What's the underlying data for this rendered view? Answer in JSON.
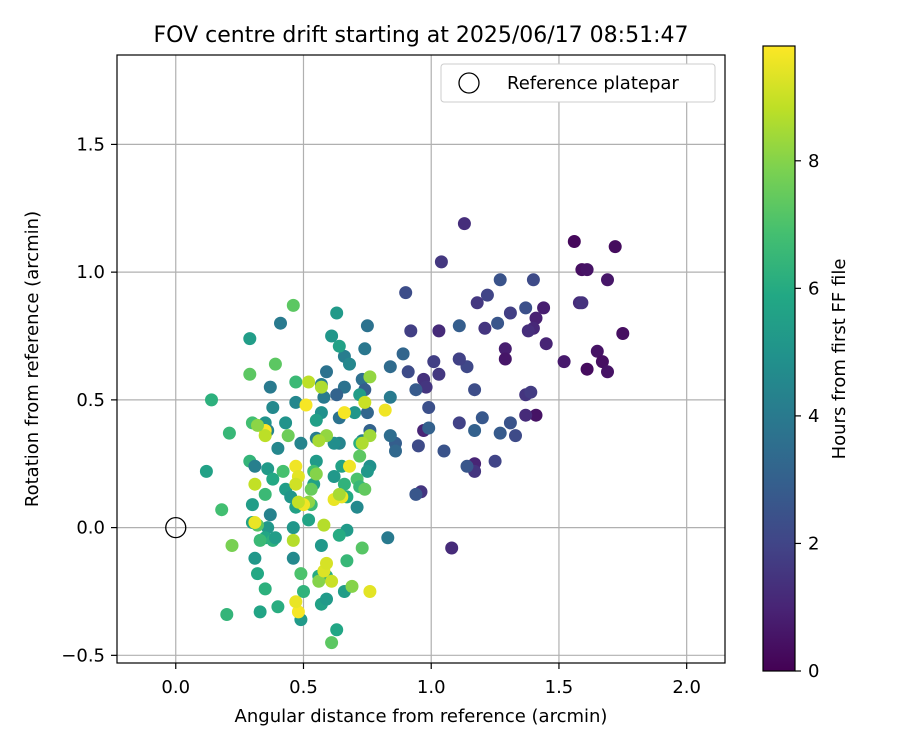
{
  "chart_data": {
    "type": "scatter",
    "title": "FOV centre drift starting at 2025/06/17 08:51:47",
    "xlabel": "Angular distance from reference (arcmin)",
    "ylabel": "Rotation from reference (arcmin)",
    "xlim": [
      -0.23,
      2.15
    ],
    "ylim": [
      -0.53,
      1.85
    ],
    "x_ticks": [
      "0.0",
      "0.5",
      "1.0",
      "1.5",
      "2.0"
    ],
    "x_tick_values": [
      0.0,
      0.5,
      1.0,
      1.5,
      2.0
    ],
    "y_ticks": [
      "−0.5",
      "0.0",
      "0.5",
      "1.0",
      "1.5"
    ],
    "y_tick_values": [
      -0.5,
      0.0,
      0.5,
      1.0,
      1.5
    ],
    "grid": true,
    "legend": {
      "label": "Reference platepar",
      "placement": "top-right"
    },
    "reference_point": {
      "x": 0.0,
      "y": 0.0
    },
    "colorbar": {
      "label": "Hours from first FF file",
      "colormap": "viridis",
      "range": [
        0,
        9.8
      ],
      "ticks": [
        "0",
        "2",
        "4",
        "6",
        "8"
      ],
      "tick_values": [
        0,
        2,
        4,
        6,
        8
      ]
    },
    "series": [
      {
        "points": [
          [
            1.56,
            1.12,
            0.2
          ],
          [
            1.59,
            1.01,
            0.4
          ],
          [
            1.61,
            1.01,
            0.5
          ],
          [
            1.72,
            1.1,
            0.3
          ],
          [
            1.69,
            0.97,
            0.6
          ],
          [
            1.75,
            0.76,
            0.4
          ],
          [
            1.65,
            0.69,
            0.5
          ],
          [
            1.67,
            0.65,
            0.4
          ],
          [
            1.69,
            0.61,
            0.5
          ],
          [
            1.61,
            0.62,
            0.3
          ],
          [
            1.52,
            0.65,
            0.7
          ],
          [
            1.58,
            0.88,
            1.2
          ],
          [
            1.59,
            0.88,
            1.4
          ],
          [
            1.44,
            0.86,
            0.8
          ],
          [
            1.41,
            0.82,
            0.9
          ],
          [
            1.4,
            0.78,
            1.1
          ],
          [
            1.38,
            0.77,
            1.3
          ],
          [
            1.45,
            0.72,
            1.0
          ],
          [
            1.41,
            0.44,
            0.5
          ],
          [
            1.37,
            0.44,
            1.2
          ],
          [
            1.37,
            0.52,
            1.5
          ],
          [
            1.39,
            0.53,
            1.7
          ],
          [
            1.29,
            0.7,
            0.8
          ],
          [
            1.29,
            0.66,
            0.6
          ],
          [
            1.31,
            0.84,
            1.8
          ],
          [
            1.37,
            0.86,
            2.4
          ],
          [
            1.4,
            0.97,
            2.2
          ],
          [
            1.21,
            0.78,
            1.5
          ],
          [
            1.18,
            0.88,
            1.6
          ],
          [
            1.22,
            0.91,
            2.0
          ],
          [
            1.27,
            0.97,
            2.5
          ],
          [
            1.13,
            1.19,
            1.3
          ],
          [
            1.04,
            1.04,
            1.6
          ],
          [
            1.26,
            0.8,
            2.6
          ],
          [
            1.31,
            0.41,
            2.5
          ],
          [
            1.33,
            0.36,
            2.2
          ],
          [
            1.27,
            0.37,
            2.8
          ],
          [
            1.25,
            0.26,
            2.0
          ],
          [
            1.2,
            0.43,
            2.7
          ],
          [
            1.17,
            0.38,
            3.0
          ],
          [
            1.17,
            0.54,
            2.3
          ],
          [
            1.14,
            0.63,
            2.1
          ],
          [
            1.11,
            0.66,
            1.4
          ],
          [
            1.11,
            0.66,
            1.9
          ],
          [
            1.11,
            0.79,
            2.9
          ],
          [
            1.11,
            0.41,
            1.9
          ],
          [
            1.17,
            0.25,
            1.0
          ],
          [
            1.17,
            0.22,
            1.5
          ],
          [
            1.14,
            0.24,
            2.6
          ],
          [
            1.08,
            -0.08,
            1.2
          ],
          [
            1.03,
            0.77,
            1.2
          ],
          [
            1.03,
            0.6,
            1.6
          ],
          [
            1.01,
            0.65,
            1.8
          ],
          [
            0.97,
            0.58,
            1.4
          ],
          [
            0.98,
            0.55,
            1.5
          ],
          [
            0.97,
            0.38,
            1.0
          ],
          [
            0.99,
            0.47,
            2.4
          ],
          [
            0.99,
            0.39,
            3.0
          ],
          [
            1.05,
            0.3,
            2.5
          ],
          [
            0.95,
            0.32,
            2.2
          ],
          [
            0.96,
            0.14,
            1.5
          ],
          [
            0.94,
            0.13,
            2.6
          ],
          [
            0.94,
            0.54,
            2.8
          ],
          [
            0.92,
            0.77,
            1.8
          ],
          [
            0.91,
            0.61,
            2.2
          ],
          [
            0.9,
            0.92,
            2.3
          ],
          [
            0.89,
            0.68,
            3.2
          ],
          [
            0.86,
            0.33,
            2.9
          ],
          [
            0.86,
            0.3,
            3.3
          ],
          [
            0.84,
            0.36,
            3.5
          ],
          [
            0.84,
            0.51,
            4.0
          ],
          [
            0.84,
            0.63,
            3.4
          ],
          [
            0.83,
            -0.04,
            4.0
          ],
          [
            0.75,
            0.79,
            3.7
          ],
          [
            0.74,
            0.7,
            3.9
          ],
          [
            0.73,
            0.58,
            3.6
          ],
          [
            0.74,
            0.54,
            2.9
          ],
          [
            0.75,
            0.45,
            3.2
          ],
          [
            0.76,
            0.38,
            3.1
          ],
          [
            0.73,
            0.34,
            4.2
          ],
          [
            0.76,
            0.24,
            4.9
          ],
          [
            0.75,
            0.22,
            5.2
          ],
          [
            0.71,
            0.08,
            4.6
          ],
          [
            0.66,
            0.67,
            4.1
          ],
          [
            0.68,
            0.64,
            4.5
          ],
          [
            0.66,
            0.55,
            3.7
          ],
          [
            0.63,
            0.52,
            3.1
          ],
          [
            0.64,
            0.43,
            3.7
          ],
          [
            0.64,
            0.33,
            4.4
          ],
          [
            0.62,
            0.33,
            4.8
          ],
          [
            0.65,
            0.24,
            5.6
          ],
          [
            0.62,
            0.2,
            5.2
          ],
          [
            0.66,
            0.17,
            6.3
          ],
          [
            0.67,
            0.12,
            5.9
          ],
          [
            0.67,
            -0.01,
            5.3
          ],
          [
            0.64,
            -0.03,
            6.0
          ],
          [
            0.66,
            -0.25,
            5.4
          ],
          [
            0.67,
            -0.13,
            6.5
          ],
          [
            0.63,
            -0.4,
            5.8
          ],
          [
            0.61,
            -0.45,
            7.3
          ],
          [
            0.59,
            0.61,
            3.7
          ],
          [
            0.57,
            0.56,
            4.1
          ],
          [
            0.58,
            0.51,
            4.0
          ],
          [
            0.57,
            0.45,
            4.9
          ],
          [
            0.55,
            0.42,
            5.5
          ],
          [
            0.55,
            0.35,
            4.1
          ],
          [
            0.55,
            0.26,
            5.3
          ],
          [
            0.54,
            0.22,
            6.8
          ],
          [
            0.54,
            0.17,
            5.6
          ],
          [
            0.53,
            0.09,
            6.6
          ],
          [
            0.52,
            0.03,
            5.7
          ],
          [
            0.57,
            -0.07,
            5.2
          ],
          [
            0.56,
            -0.19,
            6.0
          ],
          [
            0.57,
            -0.3,
            5.6
          ],
          [
            0.59,
            -0.28,
            5.3
          ],
          [
            0.59,
            -0.19,
            6.0
          ],
          [
            0.49,
            -0.36,
            5.3
          ],
          [
            0.5,
            -0.25,
            6.3
          ],
          [
            0.49,
            -0.18,
            7.0
          ],
          [
            0.46,
            -0.12,
            4.6
          ],
          [
            0.46,
            0.0,
            5.1
          ],
          [
            0.47,
            0.08,
            5.6
          ],
          [
            0.49,
            0.33,
            4.4
          ],
          [
            0.47,
            0.49,
            4.5
          ],
          [
            0.47,
            0.57,
            6.6
          ],
          [
            0.43,
            0.41,
            5.0
          ],
          [
            0.44,
            0.36,
            7.6
          ],
          [
            0.42,
            0.22,
            6.9
          ],
          [
            0.43,
            0.15,
            5.4
          ],
          [
            0.45,
            0.12,
            5.1
          ],
          [
            0.4,
            0.31,
            4.5
          ],
          [
            0.38,
            0.47,
            4.6
          ],
          [
            0.37,
            0.55,
            4.0
          ],
          [
            0.39,
            0.64,
            7.3
          ],
          [
            0.35,
            0.41,
            5.0
          ],
          [
            0.36,
            0.38,
            4.4
          ],
          [
            0.36,
            0.23,
            5.3
          ],
          [
            0.38,
            0.19,
            5.9
          ],
          [
            0.35,
            0.13,
            6.6
          ],
          [
            0.37,
            0.05,
            4.3
          ],
          [
            0.36,
            0.0,
            5.2
          ],
          [
            0.35,
            -0.04,
            5.8
          ],
          [
            0.33,
            -0.05,
            6.6
          ],
          [
            0.32,
            0.01,
            7.2
          ],
          [
            0.3,
            0.02,
            5.6
          ],
          [
            0.3,
            0.09,
            5.4
          ],
          [
            0.29,
            0.26,
            6.4
          ],
          [
            0.31,
            0.24,
            4.2
          ],
          [
            0.3,
            0.41,
            6.8
          ],
          [
            0.29,
            0.6,
            7.3
          ],
          [
            0.29,
            0.74,
            5.4
          ],
          [
            0.31,
            -0.12,
            5.2
          ],
          [
            0.32,
            -0.18,
            5.9
          ],
          [
            0.35,
            -0.24,
            6.2
          ],
          [
            0.4,
            -0.31,
            6.1
          ],
          [
            0.33,
            -0.33,
            5.7
          ],
          [
            0.38,
            -0.05,
            6.2
          ],
          [
            0.39,
            -0.04,
            5.4
          ],
          [
            0.41,
            0.8,
            4.0
          ],
          [
            0.46,
            0.87,
            7.3
          ],
          [
            0.2,
            -0.34,
            6.4
          ],
          [
            0.22,
            -0.07,
            7.8
          ],
          [
            0.18,
            0.07,
            6.8
          ],
          [
            0.21,
            0.37,
            6.5
          ],
          [
            0.14,
            0.5,
            6.2
          ],
          [
            0.12,
            0.22,
            5.6
          ],
          [
            0.63,
            0.84,
            5.3
          ],
          [
            0.61,
            0.75,
            5.1
          ],
          [
            0.64,
            0.71,
            5.6
          ],
          [
            0.72,
            0.52,
            5.4
          ],
          [
            0.7,
            0.45,
            5.1
          ],
          [
            0.72,
            0.33,
            6.1
          ],
          [
            0.72,
            0.28,
            7.3
          ],
          [
            0.71,
            0.19,
            7.0
          ],
          [
            0.72,
            0.16,
            6.5
          ],
          [
            0.74,
            0.15,
            7.4
          ],
          [
            0.73,
            -0.08,
            7.2
          ],
          [
            0.76,
            -0.25,
            9.4
          ],
          [
            0.74,
            0.49,
            9.0
          ],
          [
            0.76,
            0.59,
            8.2
          ],
          [
            0.76,
            0.36,
            8.4
          ],
          [
            0.73,
            0.33,
            8.6
          ],
          [
            0.68,
            0.24,
            9.6
          ],
          [
            0.65,
            0.12,
            9.5
          ],
          [
            0.62,
            0.11,
            9.5
          ],
          [
            0.64,
            0.13,
            8.5
          ],
          [
            0.69,
            -0.23,
            8.0
          ],
          [
            0.66,
            0.45,
            9.7
          ],
          [
            0.82,
            0.46,
            9.6
          ],
          [
            0.57,
            0.55,
            8.6
          ],
          [
            0.52,
            0.57,
            8.8
          ],
          [
            0.51,
            0.48,
            9.7
          ],
          [
            0.59,
            0.36,
            8.2
          ],
          [
            0.56,
            0.34,
            8.5
          ],
          [
            0.55,
            0.21,
            8.0
          ],
          [
            0.53,
            0.15,
            7.5
          ],
          [
            0.52,
            0.1,
            8.1
          ],
          [
            0.5,
            0.09,
            9.6
          ],
          [
            0.47,
            0.24,
            9.6
          ],
          [
            0.48,
            0.2,
            9.4
          ],
          [
            0.47,
            0.17,
            9.1
          ],
          [
            0.48,
            0.1,
            8.9
          ],
          [
            0.48,
            -0.33,
            9.7
          ],
          [
            0.47,
            -0.29,
            9.5
          ],
          [
            0.46,
            -0.05,
            8.7
          ],
          [
            0.56,
            -0.21,
            8.0
          ],
          [
            0.58,
            -0.17,
            9.3
          ],
          [
            0.59,
            -0.14,
            9.2
          ],
          [
            0.58,
            0.01,
            8.7
          ],
          [
            0.61,
            -0.21,
            9.0
          ],
          [
            0.35,
            0.38,
            9.8
          ],
          [
            0.35,
            0.36,
            8.8
          ],
          [
            0.31,
            0.17,
            8.9
          ],
          [
            0.31,
            0.02,
            9.5
          ],
          [
            0.32,
            0.4,
            8.1
          ]
        ]
      }
    ]
  }
}
